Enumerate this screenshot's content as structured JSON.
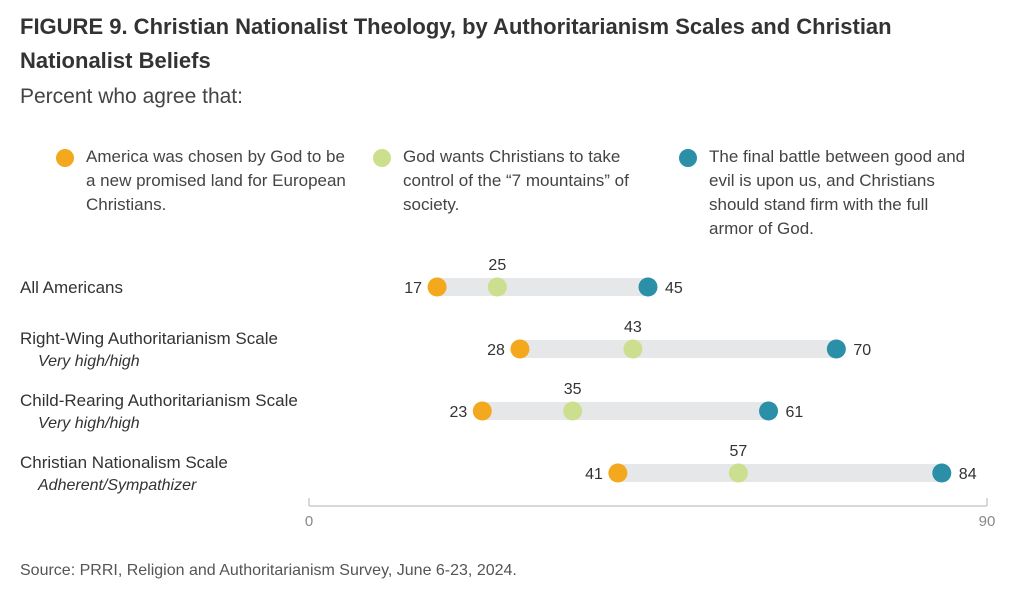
{
  "title": "FIGURE 9.  Christian Nationalist Theology, by Authoritarianism Scales and Christian Nationalist Beliefs",
  "subtitle": "Percent who agree that:",
  "source": "Source: PRRI, Religion and Authoritarianism Survey, June 6-23, 2024.",
  "chart_data": {
    "type": "scatter",
    "subtype": "dot-range",
    "xlim": [
      0,
      90
    ],
    "x_ticks": [
      "0",
      "90"
    ],
    "legend_placement": "top",
    "grid": false,
    "series": [
      {
        "name": "America was chosen by God to be a new promised land for European Christians.",
        "color": "#F3A81D",
        "values": [
          17,
          28,
          23,
          41
        ]
      },
      {
        "name": "God wants Christians to take control of the “7 mountains” of society.",
        "color": "#CCDF8E",
        "values": [
          25,
          43,
          35,
          57
        ]
      },
      {
        "name": "The final battle between good and evil is upon us, and Christians should stand firm with the full armor of God.",
        "color": "#2B8FA8",
        "values": [
          45,
          70,
          61,
          84
        ]
      }
    ],
    "categories": [
      {
        "label": "All Americans",
        "sublabel": ""
      },
      {
        "label": "Right-Wing Authoritarianism Scale",
        "sublabel": "Very high/high"
      },
      {
        "label": "Child-Rearing Authoritarianism Scale",
        "sublabel": "Very high/high"
      },
      {
        "label": "Christian Nationalism Scale",
        "sublabel": "Adherent/Sympathizer"
      }
    ],
    "range_bar_color": "#E6E7E8",
    "axis_color": "#CCCCCC"
  }
}
